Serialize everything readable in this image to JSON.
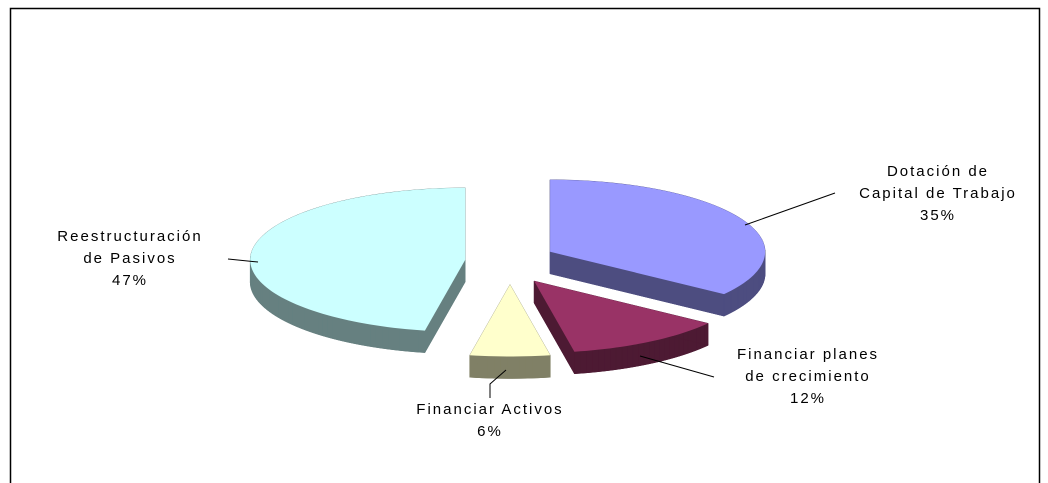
{
  "chart_data": {
    "type": "pie3d",
    "categories": [
      [
        "Dotación de",
        "Capital de Trabajo"
      ],
      [
        "Financiar planes",
        "de crecimiento"
      ],
      [
        "Financiar Activos"
      ],
      [
        "Reestructuración",
        "de Pasivos"
      ]
    ],
    "values": [
      35,
      12,
      6,
      47
    ],
    "value_labels": [
      "35%",
      "12%",
      "6%",
      "47%"
    ],
    "colors": [
      "#9999ff",
      "#993366",
      "#ffffcc",
      "#ccffff"
    ]
  }
}
